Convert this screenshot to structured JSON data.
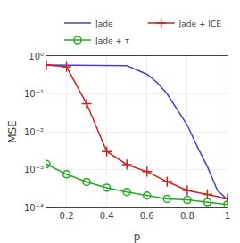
{
  "chart_data": {
    "type": "line",
    "xlabel": "p",
    "ylabel": "MSE",
    "log": "y",
    "grid": true,
    "legend": "upper right",
    "xlim": [
      0.1,
      1.0
    ],
    "xticks": [
      0.2,
      0.4,
      0.6,
      0.8,
      1.0
    ],
    "ylim": [
      0.0001,
      1
    ],
    "yticks": [
      {
        "value": 0.0001,
        "label": "10⁻⁴"
      },
      {
        "value": 0.001,
        "label": "10⁻³"
      },
      {
        "value": 0.01,
        "label": "10⁻²"
      },
      {
        "value": 0.1,
        "label": "10⁻¹"
      },
      {
        "value": 1,
        "label": "10⁰"
      }
    ],
    "series": [
      {
        "name": "Jade",
        "color": "#4444cc",
        "marker": "none",
        "line_style": "solid",
        "x": [
          0.1,
          0.15,
          0.2,
          0.3,
          0.4,
          0.5,
          0.6,
          0.65,
          0.7,
          0.75,
          0.8,
          0.85,
          0.9,
          0.95,
          1.0
        ],
        "values": [
          0.58,
          0.58,
          0.58,
          0.575,
          0.565,
          0.56,
          0.33,
          0.2,
          0.1,
          0.04,
          0.015,
          0.004,
          0.0012,
          0.00028,
          0.00016
        ]
      },
      {
        "name": "Jade + ICE",
        "color": "#cc2222",
        "marker": "plus",
        "line_style": "solid",
        "x": [
          0.1,
          0.2,
          0.3,
          0.4,
          0.5,
          0.6,
          0.7,
          0.8,
          0.9,
          1.0
        ],
        "values": [
          0.58,
          0.52,
          0.055,
          0.003,
          0.00135,
          0.00088,
          0.00048,
          0.00028,
          0.00022,
          0.00017
        ]
      },
      {
        "name": "Jade + τ",
        "color": "#22aa22",
        "marker": "circle_open",
        "line_style": "solid",
        "x": [
          0.1,
          0.2,
          0.3,
          0.4,
          0.5,
          0.6,
          0.7,
          0.8,
          0.9,
          1.0
        ],
        "values": [
          0.0014,
          0.00075,
          0.00047,
          0.00033,
          0.000255,
          0.000205,
          0.000168,
          0.000158,
          0.000138,
          0.00012
        ]
      }
    ]
  }
}
